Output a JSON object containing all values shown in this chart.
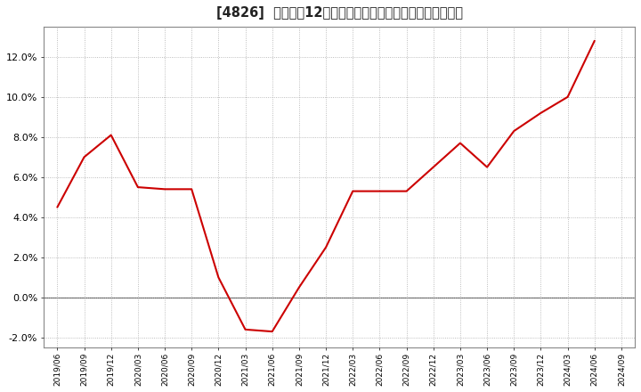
{
  "title": "[4826]  売上高の12か月移動合計の対前年同期増減率の推移",
  "line_color": "#cc0000",
  "background_color": "#ffffff",
  "plot_bg_color": "#ffffff",
  "grid_color": "#aaaaaa",
  "ylim": [
    -0.025,
    0.135
  ],
  "yticks": [
    -0.02,
    0.0,
    0.02,
    0.04,
    0.06,
    0.08,
    0.1,
    0.12
  ],
  "dates": [
    "2019/06",
    "2019/09",
    "2019/12",
    "2020/03",
    "2020/06",
    "2020/09",
    "2020/12",
    "2021/03",
    "2021/06",
    "2021/09",
    "2021/12",
    "2022/03",
    "2022/06",
    "2022/09",
    "2022/12",
    "2023/03",
    "2023/06",
    "2023/09",
    "2023/12",
    "2024/03",
    "2024/06",
    "2024/09"
  ],
  "values": [
    0.045,
    0.07,
    0.081,
    0.055,
    0.054,
    0.054,
    0.01,
    -0.016,
    -0.017,
    0.005,
    0.025,
    0.053,
    0.053,
    0.053,
    0.065,
    0.077,
    0.065,
    0.083,
    0.092,
    0.1,
    0.128,
    null
  ]
}
